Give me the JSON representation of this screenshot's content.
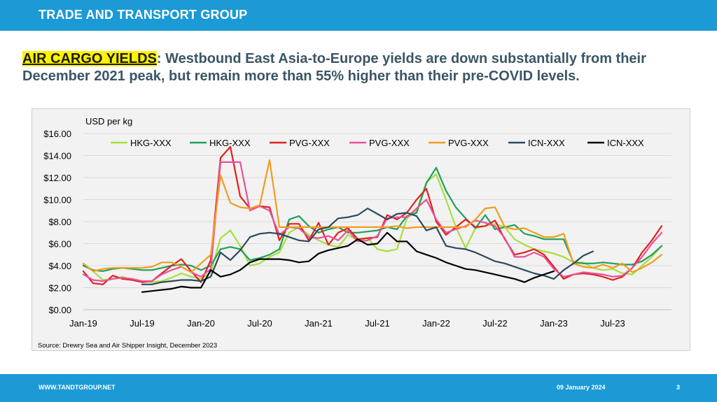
{
  "header": {
    "title": "TRADE AND TRANSPORT GROUP"
  },
  "headline": {
    "highlight": "AIR CARGO YIELDS",
    "text": ": Westbound East Asia-to-Europe yields are down substantially from their December 2021 peak, but remain more than 55% higher than their pre-COVID levels."
  },
  "footer": {
    "website": "WWW.TANDTGROUP.NET",
    "date": "09 January 2024",
    "page": "3"
  },
  "chart_data": {
    "type": "line",
    "ylabel": "USD per kg",
    "source": "Source: Drewry Sea and Air Shipper Insight, December 2023",
    "ylim": [
      0,
      16
    ],
    "xlim": [
      0,
      60
    ],
    "y_ticks": [
      {
        "value": 0,
        "label": "$0.00"
      },
      {
        "value": 2,
        "label": "$2.00"
      },
      {
        "value": 4,
        "label": "$4.00"
      },
      {
        "value": 6,
        "label": "$6.00"
      },
      {
        "value": 8,
        "label": "$8.00"
      },
      {
        "value": 10,
        "label": "$10.00"
      },
      {
        "value": 12,
        "label": "$12.00"
      },
      {
        "value": 14,
        "label": "$14.00"
      },
      {
        "value": 16,
        "label": "$16.00"
      }
    ],
    "x_ticks": [
      {
        "value": 0,
        "label": "Jan-19"
      },
      {
        "value": 6,
        "label": "Jul-19"
      },
      {
        "value": 12,
        "label": "Jan-20"
      },
      {
        "value": 18,
        "label": "Jul-20"
      },
      {
        "value": 24,
        "label": "Jan-21"
      },
      {
        "value": 30,
        "label": "Jul-21"
      },
      {
        "value": 36,
        "label": "Jan-22"
      },
      {
        "value": 42,
        "label": "Jul-22"
      },
      {
        "value": 48,
        "label": "Jan-23"
      },
      {
        "value": 54,
        "label": "Jul-23"
      }
    ],
    "series": [
      {
        "name": "HKG-XXX",
        "color": "#a6e03a",
        "start": 0,
        "values": [
          4.1,
          3.5,
          2.7,
          2.8,
          3.0,
          2.7,
          2.6,
          2.5,
          2.6,
          2.9,
          3.3,
          3.0,
          2.8,
          3.4,
          6.5,
          7.2,
          5.8,
          4.0,
          4.2,
          4.8,
          5.2,
          7.0,
          7.5,
          6.8,
          6.3,
          5.9,
          5.7,
          6.8,
          6.3,
          6.5,
          5.5,
          5.3,
          5.5,
          8.3,
          9.0,
          11.6,
          12.3,
          10.0,
          7.5,
          5.6,
          7.4,
          7.6,
          7.8,
          7.5,
          6.4,
          5.9,
          5.5,
          5.3,
          5.1,
          4.8,
          4.3,
          4.3,
          3.8,
          3.6,
          3.7,
          3.3,
          3.2,
          4.0,
          4.8,
          5.8
        ]
      },
      {
        "name": "HKG-XXX",
        "color": "#1fa05a",
        "start": 0,
        "values": [
          4.0,
          3.6,
          3.5,
          3.7,
          3.8,
          3.7,
          3.6,
          3.6,
          3.8,
          4.0,
          4.1,
          4.0,
          3.6,
          4.0,
          5.5,
          5.7,
          5.5,
          4.5,
          4.7,
          5.0,
          5.5,
          8.2,
          8.5,
          7.6,
          7.0,
          7.3,
          7.5,
          7.0,
          7.0,
          7.1,
          7.2,
          7.5,
          7.3,
          8.5,
          8.8,
          11.5,
          12.9,
          10.8,
          9.3,
          8.3,
          7.4,
          8.6,
          7.3,
          7.5,
          7.7,
          6.9,
          6.7,
          6.4,
          6.4,
          6.4,
          4.3,
          4.2,
          4.2,
          4.3,
          4.2,
          4.1,
          4.1,
          4.4,
          5.0,
          5.8
        ]
      },
      {
        "name": "PVG-XXX",
        "color": "#e02020",
        "start": 0,
        "values": [
          3.5,
          2.4,
          2.3,
          3.1,
          2.8,
          2.7,
          2.5,
          2.6,
          3.3,
          4.0,
          4.6,
          3.5,
          2.5,
          4.5,
          13.8,
          14.8,
          10.3,
          9.2,
          9.4,
          9.3,
          6.3,
          7.8,
          7.8,
          6.3,
          7.9,
          5.9,
          7.0,
          7.4,
          6.4,
          6.5,
          6.6,
          8.6,
          8.2,
          8.8,
          10.0,
          11.0,
          8.0,
          6.8,
          7.5,
          8.2,
          7.5,
          7.6,
          8.1,
          6.4,
          5.0,
          5.2,
          5.5,
          5.0,
          3.9,
          2.8,
          3.2,
          3.3,
          3.2,
          3.0,
          2.7,
          3.0,
          3.8,
          5.2,
          6.3,
          7.6
        ]
      },
      {
        "name": "PVG-XXX",
        "color": "#e8529a",
        "start": 0,
        "values": [
          3.2,
          2.7,
          2.6,
          2.8,
          2.9,
          2.8,
          2.6,
          2.6,
          3.2,
          3.6,
          3.9,
          3.4,
          3.0,
          3.7,
          13.4,
          13.4,
          13.4,
          9.0,
          9.4,
          9.0,
          6.8,
          7.5,
          7.4,
          6.6,
          6.5,
          6.7,
          6.3,
          7.2,
          6.2,
          6.3,
          6.7,
          8.3,
          8.4,
          8.4,
          9.2,
          10.0,
          8.2,
          7.0,
          7.3,
          7.6,
          8.1,
          7.9,
          7.6,
          6.5,
          4.8,
          4.8,
          5.2,
          4.8,
          3.7,
          3.0,
          3.2,
          3.4,
          3.3,
          3.2,
          3.0,
          3.1,
          3.8,
          4.8,
          6.0,
          7.0
        ]
      },
      {
        "name": "PVG-XXX",
        "color": "#f39c1f",
        "start": 0,
        "values": [
          4.2,
          3.5,
          3.7,
          3.8,
          3.8,
          3.8,
          3.8,
          3.9,
          4.3,
          4.3,
          3.9,
          3.4,
          4.2,
          5.0,
          12.2,
          9.7,
          9.3,
          9.2,
          9.5,
          13.6,
          7.5,
          7.5,
          7.5,
          7.5,
          7.5,
          7.5,
          7.5,
          7.5,
          7.5,
          7.5,
          7.5,
          7.5,
          7.6,
          7.4,
          7.5,
          7.5,
          7.5,
          7.5,
          7.5,
          7.5,
          8.2,
          9.2,
          9.3,
          7.5,
          7.3,
          7.4,
          7.0,
          6.6,
          6.6,
          6.9,
          4.2,
          3.9,
          3.8,
          4.1,
          3.8,
          4.2,
          3.4,
          3.8,
          4.3,
          5.0
        ]
      },
      {
        "name": "ICN-XXX",
        "color": "#2b4a5e",
        "start": 6,
        "values": [
          2.3,
          2.3,
          2.5,
          2.6,
          2.7,
          2.7,
          2.6,
          3.0,
          5.2,
          4.5,
          5.4,
          6.6,
          6.9,
          7.0,
          6.9,
          6.6,
          6.3,
          6.2,
          7.3,
          7.5,
          8.3,
          8.4,
          8.6,
          9.2,
          8.7,
          8.2,
          8.7,
          8.8,
          8.5,
          7.2,
          7.5,
          5.8,
          5.6,
          5.5,
          5.2,
          4.8,
          4.4,
          4.2,
          3.9,
          3.6,
          3.3,
          3.1,
          2.8,
          3.6,
          4.2,
          4.9,
          5.3
        ]
      },
      {
        "name": "ICN-XXX",
        "color": "#000000",
        "start": 6,
        "values": [
          1.6,
          1.7,
          1.8,
          1.9,
          2.1,
          2.0,
          2.0,
          3.6,
          3.0,
          3.2,
          3.6,
          4.3,
          4.6,
          4.6,
          4.6,
          4.5,
          4.3,
          4.4,
          5.1,
          5.4,
          5.6,
          5.8,
          6.4,
          5.9,
          6.0,
          7.0,
          6.2,
          6.2,
          5.3,
          5.0,
          4.7,
          4.3,
          4.0,
          3.7,
          3.6,
          3.4,
          3.2,
          3.0,
          2.8,
          2.5,
          2.9,
          3.2,
          3.5
        ]
      }
    ]
  }
}
